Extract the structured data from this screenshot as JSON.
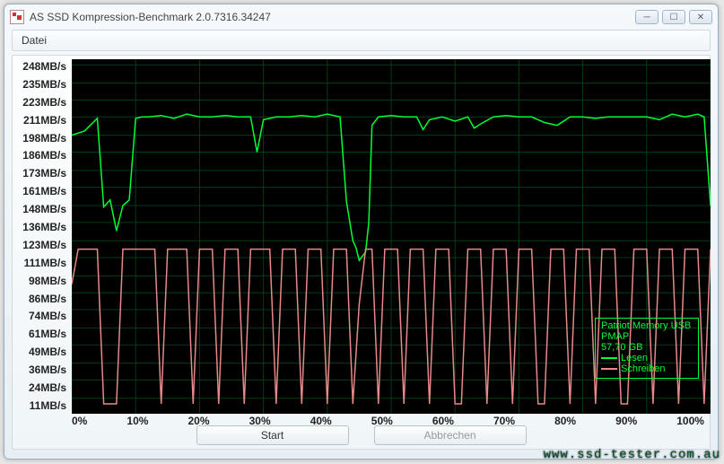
{
  "window": {
    "title": "AS SSD Kompression-Benchmark 2.0.7316.34247"
  },
  "menu": {
    "file": "Datei"
  },
  "chart": {
    "type": "line",
    "background_color": "#000000",
    "grid_color": "#003d1a",
    "y_unit": "MB/s",
    "y_ticks": [
      248,
      235,
      223,
      211,
      198,
      186,
      173,
      161,
      148,
      136,
      123,
      111,
      98,
      86,
      74,
      61,
      49,
      36,
      24,
      11
    ],
    "ylim": [
      0,
      252
    ],
    "x_ticks": [
      "0%",
      "10%",
      "20%",
      "30%",
      "40%",
      "50%",
      "60%",
      "70%",
      "80%",
      "90%",
      "100%"
    ],
    "xlim": [
      0,
      100
    ],
    "x_grid_step": 10,
    "y_grid_step": 12.5,
    "line_width": 1.5,
    "series": [
      {
        "name": "Lesen",
        "color": "#00ff33",
        "points": [
          [
            0,
            198
          ],
          [
            2,
            201
          ],
          [
            4,
            210
          ],
          [
            5,
            147
          ],
          [
            6,
            152
          ],
          [
            7,
            130
          ],
          [
            8,
            148
          ],
          [
            9,
            152
          ],
          [
            10,
            210
          ],
          [
            11,
            211
          ],
          [
            12,
            211
          ],
          [
            14,
            212
          ],
          [
            16,
            210
          ],
          [
            18,
            213
          ],
          [
            20,
            211
          ],
          [
            22,
            211
          ],
          [
            24,
            212
          ],
          [
            26,
            211
          ],
          [
            28,
            211
          ],
          [
            29,
            186
          ],
          [
            30,
            209
          ],
          [
            32,
            211
          ],
          [
            34,
            211
          ],
          [
            36,
            212
          ],
          [
            38,
            211
          ],
          [
            40,
            213
          ],
          [
            42,
            211
          ],
          [
            43,
            151
          ],
          [
            44,
            123
          ],
          [
            44.5,
            118
          ],
          [
            45,
            109
          ],
          [
            46,
            115
          ],
          [
            46.5,
            136
          ],
          [
            47,
            205
          ],
          [
            48,
            211
          ],
          [
            50,
            212
          ],
          [
            52,
            211
          ],
          [
            54,
            211
          ],
          [
            55,
            202
          ],
          [
            56,
            209
          ],
          [
            58,
            211
          ],
          [
            60,
            208
          ],
          [
            62,
            211
          ],
          [
            63,
            203
          ],
          [
            64,
            206
          ],
          [
            66,
            211
          ],
          [
            68,
            212
          ],
          [
            70,
            211
          ],
          [
            72,
            211
          ],
          [
            74,
            207
          ],
          [
            76,
            205
          ],
          [
            78,
            211
          ],
          [
            80,
            211
          ],
          [
            82,
            210
          ],
          [
            84,
            211
          ],
          [
            86,
            211
          ],
          [
            88,
            211
          ],
          [
            90,
            211
          ],
          [
            92,
            209
          ],
          [
            94,
            213
          ],
          [
            96,
            211
          ],
          [
            98,
            213
          ],
          [
            99,
            211
          ],
          [
            100,
            148
          ]
        ]
      },
      {
        "name": "Schreiben",
        "color": "#e88888",
        "points": [
          [
            0,
            92
          ],
          [
            1,
            117
          ],
          [
            2,
            117
          ],
          [
            3,
            117
          ],
          [
            4,
            117
          ],
          [
            5,
            7
          ],
          [
            6,
            7
          ],
          [
            7,
            7
          ],
          [
            8,
            117
          ],
          [
            9,
            117
          ],
          [
            10,
            117
          ],
          [
            11,
            117
          ],
          [
            12,
            117
          ],
          [
            13,
            117
          ],
          [
            14,
            7
          ],
          [
            15,
            117
          ],
          [
            16,
            117
          ],
          [
            17,
            117
          ],
          [
            18,
            117
          ],
          [
            19,
            7
          ],
          [
            20,
            117
          ],
          [
            21,
            117
          ],
          [
            22,
            117
          ],
          [
            23,
            7
          ],
          [
            24,
            117
          ],
          [
            25,
            117
          ],
          [
            26,
            117
          ],
          [
            27,
            7
          ],
          [
            28,
            117
          ],
          [
            29,
            117
          ],
          [
            30,
            117
          ],
          [
            31,
            117
          ],
          [
            32,
            7
          ],
          [
            33,
            117
          ],
          [
            34,
            117
          ],
          [
            35,
            117
          ],
          [
            36,
            7
          ],
          [
            37,
            117
          ],
          [
            38,
            117
          ],
          [
            39,
            117
          ],
          [
            40,
            7
          ],
          [
            41,
            117
          ],
          [
            42,
            117
          ],
          [
            43,
            117
          ],
          [
            44,
            7
          ],
          [
            45,
            78
          ],
          [
            46,
            117
          ],
          [
            47,
            117
          ],
          [
            48,
            7
          ],
          [
            49,
            117
          ],
          [
            50,
            117
          ],
          [
            51,
            117
          ],
          [
            52,
            7
          ],
          [
            53,
            117
          ],
          [
            54,
            117
          ],
          [
            55,
            117
          ],
          [
            56,
            7
          ],
          [
            57,
            117
          ],
          [
            58,
            117
          ],
          [
            59,
            117
          ],
          [
            60,
            7
          ],
          [
            61,
            7
          ],
          [
            62,
            117
          ],
          [
            63,
            117
          ],
          [
            64,
            117
          ],
          [
            65,
            7
          ],
          [
            66,
            117
          ],
          [
            67,
            117
          ],
          [
            68,
            117
          ],
          [
            69,
            7
          ],
          [
            70,
            117
          ],
          [
            71,
            117
          ],
          [
            72,
            117
          ],
          [
            73,
            7
          ],
          [
            74,
            7
          ],
          [
            75,
            117
          ],
          [
            76,
            117
          ],
          [
            77,
            117
          ],
          [
            78,
            7
          ],
          [
            79,
            117
          ],
          [
            80,
            117
          ],
          [
            81,
            117
          ],
          [
            82,
            7
          ],
          [
            83,
            117
          ],
          [
            84,
            117
          ],
          [
            85,
            117
          ],
          [
            86,
            7
          ],
          [
            87,
            7
          ],
          [
            88,
            117
          ],
          [
            89,
            117
          ],
          [
            90,
            117
          ],
          [
            91,
            7
          ],
          [
            92,
            117
          ],
          [
            93,
            117
          ],
          [
            94,
            117
          ],
          [
            95,
            7
          ],
          [
            96,
            117
          ],
          [
            97,
            117
          ],
          [
            98,
            117
          ],
          [
            99,
            7
          ],
          [
            100,
            117
          ]
        ]
      }
    ]
  },
  "legend": {
    "line1": "Patriot Memory USB",
    "line2": "PMAP",
    "line3": "57,70 GB",
    "read": "Lesen",
    "write": "Schreiben",
    "border_color": "#00ff33",
    "read_color": "#00ff33",
    "write_color": "#e88888"
  },
  "buttons": {
    "start": "Start",
    "abort": "Abbrechen"
  },
  "watermark": "www.ssd-tester.com.au"
}
